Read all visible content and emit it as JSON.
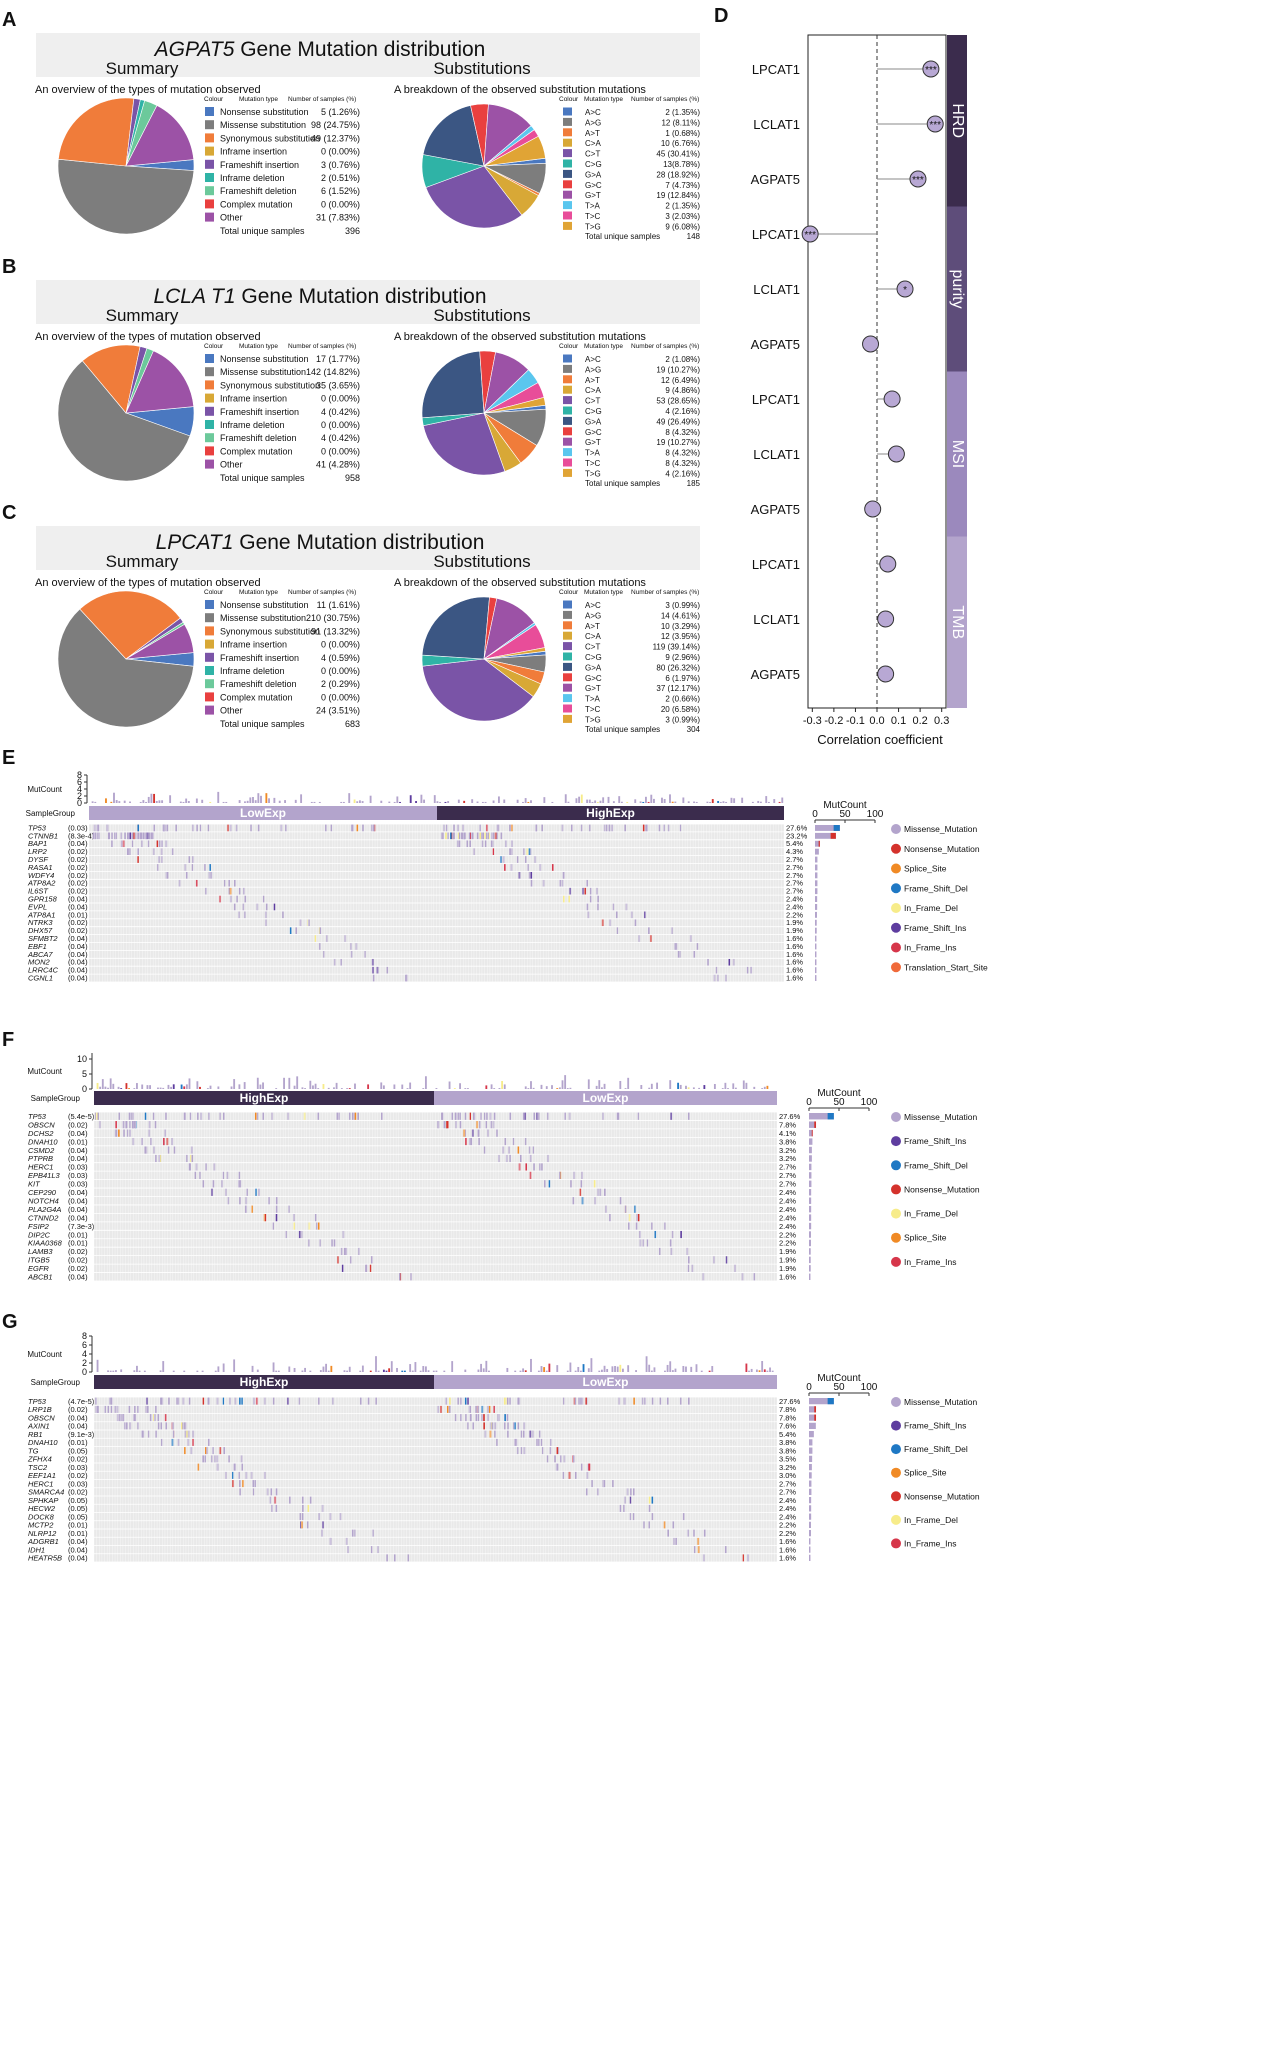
{
  "colors": {
    "header_bg": "#efefef",
    "dark_purple": "#3b2c4d",
    "light_purple": "#b3a4cc",
    "mid_purple": "#5e4d7a",
    "cell_bg": "#e9e9e9",
    "sub": {
      "A>C": "#4a78c0",
      "A>G": "#7d7d7d",
      "A>T": "#f07c3a",
      "C>A": "#d8a836",
      "C>T": "#7a54a7",
      "C>G": "#2fb3a6",
      "G>A": "#3b5683",
      "G>C": "#e9403f",
      "G>T": "#9c52a6",
      "T>A": "#5ac6ee",
      "T>C": "#e84d99",
      "T>G": "#e0a435"
    },
    "type": {
      "Nonsense substitution": "#4a78c0",
      "Missense substitution": "#7d7d7d",
      "Synonymous substitution": "#f07c3a",
      "Inframe insertion": "#d8a836",
      "Frameshift insertion": "#7a54a7",
      "Inframe deletion": "#2fb3a6",
      "Frameshift deletion": "#6cc99b",
      "Complex mutation": "#e9403f",
      "Other": "#9c52a6"
    },
    "onco": {
      "Missense_Mutation": "#b3a4cc",
      "Nonsense_Mutation": "#d4322c",
      "Splice_Site": "#f08a25",
      "Frame_Shift_Del": "#1f78c4",
      "In_Frame_Del": "#f7ec8a",
      "Frame_Shift_Ins": "#5e3d9f",
      "In_Frame_Ins": "#d6364a",
      "Translation_Start_Site": "#f06a3a"
    }
  },
  "panels": [
    {
      "letter": "A",
      "gene": "AGPAT5",
      "title_rest": " Gene Mutation distribution",
      "summary_label": "Summary",
      "subs_label": "Substitutions",
      "summary_caption": "An overview of the types of mutation observed",
      "subs_caption": "A breakdown of the observed substitution mutations",
      "col_headers": [
        "Colour",
        "Mutation type",
        "Number of  samples (%)"
      ],
      "types": [
        {
          "name": "Nonsense substitution",
          "value": 5,
          "text": "5 (1.26%)"
        },
        {
          "name": "Missense substitution",
          "value": 98,
          "text": "98 (24.75%)"
        },
        {
          "name": "Synonymous substitution",
          "value": 49,
          "text": "49 (12.37%)"
        },
        {
          "name": "Inframe insertion",
          "value": 0,
          "text": "0 (0.00%)"
        },
        {
          "name": "Frameshift insertion",
          "value": 3,
          "text": "3 (0.76%)"
        },
        {
          "name": "Inframe deletion",
          "value": 2,
          "text": "2 (0.51%)"
        },
        {
          "name": "Frameshift deletion",
          "value": 6,
          "text": "6 (1.52%)"
        },
        {
          "name": "Complex mutation",
          "value": 0,
          "text": "0 (0.00%)"
        },
        {
          "name": "Other",
          "value": 31,
          "text": "31 (7.83%)"
        }
      ],
      "total_label": "Total unique samples",
      "total": "396",
      "subs": [
        {
          "name": "A>C",
          "value": 2,
          "text": "2 (1.35%)"
        },
        {
          "name": "A>G",
          "value": 12,
          "text": "12 (8.11%)"
        },
        {
          "name": "A>T",
          "value": 1,
          "text": "1 (0.68%)"
        },
        {
          "name": "C>A",
          "value": 10,
          "text": "10 (6.76%)"
        },
        {
          "name": "C>T",
          "value": 45,
          "text": "45 (30.41%)"
        },
        {
          "name": "C>G",
          "value": 13,
          "text": "13(8.78%)"
        },
        {
          "name": "G>A",
          "value": 28,
          "text": "28 (18.92%)"
        },
        {
          "name": "G>C",
          "value": 7,
          "text": "7 (4.73%)"
        },
        {
          "name": "G>T",
          "value": 19,
          "text": "19 (12.84%)"
        },
        {
          "name": "T>A",
          "value": 2,
          "text": "2 (1.35%)"
        },
        {
          "name": "T>C",
          "value": 3,
          "text": "3 (2.03%)"
        },
        {
          "name": "T>G",
          "value": 9,
          "text": "9 (6.08%)"
        }
      ],
      "subs_total": "148"
    },
    {
      "letter": "B",
      "gene": "LCLA T1",
      "title_rest": " Gene Mutation distribution",
      "summary_label": "Summary",
      "subs_label": "Substitutions",
      "summary_caption": "An overview of the types of mutation observed",
      "subs_caption": "A breakdown of the observed substitution mutations",
      "col_headers": [
        "Colour",
        "Mutation type",
        "Number of  samples (%)"
      ],
      "types": [
        {
          "name": "Nonsense substitution",
          "value": 17,
          "text": "17 (1.77%)"
        },
        {
          "name": "Missense substitution",
          "value": 142,
          "text": "142 (14.82%)"
        },
        {
          "name": "Synonymous substitution",
          "value": 35,
          "text": "35 (3.65%)"
        },
        {
          "name": "Inframe insertion",
          "value": 0,
          "text": "0 (0.00%)"
        },
        {
          "name": "Frameshift insertion",
          "value": 4,
          "text": "4 (0.42%)"
        },
        {
          "name": "Inframe deletion",
          "value": 0,
          "text": "0 (0.00%)"
        },
        {
          "name": "Frameshift deletion",
          "value": 4,
          "text": "4 (0.42%)"
        },
        {
          "name": "Complex mutation",
          "value": 0,
          "text": "0 (0.00%)"
        },
        {
          "name": "Other",
          "value": 41,
          "text": "41 (4.28%)"
        }
      ],
      "total_label": "Total unique samples",
      "total": "958",
      "subs": [
        {
          "name": "A>C",
          "value": 2,
          "text": "2 (1.08%)"
        },
        {
          "name": "A>G",
          "value": 19,
          "text": "19 (10.27%)"
        },
        {
          "name": "A>T",
          "value": 12,
          "text": "12 (6.49%)"
        },
        {
          "name": "C>A",
          "value": 9,
          "text": "9 (4.86%)"
        },
        {
          "name": "C>T",
          "value": 53,
          "text": "53 (28.65%)"
        },
        {
          "name": "C>G",
          "value": 4,
          "text": "4 (2.16%)"
        },
        {
          "name": "G>A",
          "value": 49,
          "text": "49 (26.49%)"
        },
        {
          "name": "G>C",
          "value": 8,
          "text": "8 (4.32%)"
        },
        {
          "name": "G>T",
          "value": 19,
          "text": "19 (10.27%)"
        },
        {
          "name": "T>A",
          "value": 8,
          "text": "8 (4.32%)"
        },
        {
          "name": "T>C",
          "value": 8,
          "text": "8 (4.32%)"
        },
        {
          "name": "T>G",
          "value": 4,
          "text": "4 (2.16%)"
        }
      ],
      "subs_total": "185"
    },
    {
      "letter": "C",
      "gene": "LPCAT1",
      "title_rest": " Gene Mutation distribution",
      "summary_label": "Summary",
      "subs_label": "Substitutions",
      "summary_caption": "An overview of the types of mutation observed",
      "subs_caption": "A breakdown of the observed substitution mutations",
      "col_headers": [
        "Colour",
        "Mutation type",
        "Number of  samples (%)"
      ],
      "types": [
        {
          "name": "Nonsense substitution",
          "value": 11,
          "text": "11 (1.61%)"
        },
        {
          "name": "Missense substitution",
          "value": 210,
          "text": "210 (30.75%)"
        },
        {
          "name": "Synonymous substitution",
          "value": 91,
          "text": "91 (13.32%)"
        },
        {
          "name": "Inframe insertion",
          "value": 0,
          "text": "0 (0.00%)"
        },
        {
          "name": "Frameshift insertion",
          "value": 4,
          "text": "4 (0.59%)"
        },
        {
          "name": "Inframe deletion",
          "value": 0,
          "text": "0 (0.00%)"
        },
        {
          "name": "Frameshift deletion",
          "value": 2,
          "text": "2 (0.29%)"
        },
        {
          "name": "Complex mutation",
          "value": 0,
          "text": "0 (0.00%)"
        },
        {
          "name": "Other",
          "value": 24,
          "text": "24 (3.51%)"
        }
      ],
      "total_label": "Total unique samples",
      "total": "683",
      "subs": [
        {
          "name": "A>C",
          "value": 3,
          "text": "3 (0.99%)"
        },
        {
          "name": "A>G",
          "value": 14,
          "text": "14 (4.61%)"
        },
        {
          "name": "A>T",
          "value": 10,
          "text": "10 (3.29%)"
        },
        {
          "name": "C>A",
          "value": 12,
          "text": "12 (3.95%)"
        },
        {
          "name": "C>T",
          "value": 119,
          "text": "119 (39.14%)"
        },
        {
          "name": "C>G",
          "value": 9,
          "text": "9 (2.96%)"
        },
        {
          "name": "G>A",
          "value": 80,
          "text": "80 (26.32%)"
        },
        {
          "name": "G>C",
          "value": 6,
          "text": "6 (1.97%)"
        },
        {
          "name": "G>T",
          "value": 37,
          "text": "37 (12.17%)"
        },
        {
          "name": "T>A",
          "value": 2,
          "text": "2 (0.66%)"
        },
        {
          "name": "T>C",
          "value": 20,
          "text": "20 (6.58%)"
        },
        {
          "name": "T>G",
          "value": 3,
          "text": "3 (0.99%)"
        }
      ],
      "subs_total": "304"
    }
  ],
  "chart_data": {
    "type": "scatter",
    "letter": "D",
    "xlabel": "Correlation coefficient",
    "xlim": [
      -0.32,
      0.32
    ],
    "xticks": [
      "-0.3",
      "-0.2",
      "-0.1",
      "0.0",
      "0.1",
      "0.2",
      "0.3"
    ],
    "xtick_values": [
      -0.3,
      -0.2,
      -0.1,
      0.0,
      0.1,
      0.2,
      0.3
    ],
    "groups": [
      {
        "name": "HRD",
        "points": [
          {
            "gene": "LPCAT1",
            "r": 0.25,
            "sig": "***"
          },
          {
            "gene": "LCLAT1",
            "r": 0.27,
            "sig": "***"
          },
          {
            "gene": "AGPAT5",
            "r": 0.19,
            "sig": "***"
          }
        ]
      },
      {
        "name": "purity",
        "points": [
          {
            "gene": "LPCAT1",
            "r": -0.31,
            "sig": "***"
          },
          {
            "gene": "LCLAT1",
            "r": 0.13,
            "sig": "*"
          },
          {
            "gene": "AGPAT5",
            "r": -0.03,
            "sig": ""
          }
        ]
      },
      {
        "name": "MSI",
        "points": [
          {
            "gene": "LPCAT1",
            "r": 0.07,
            "sig": ""
          },
          {
            "gene": "LCLAT1",
            "r": 0.09,
            "sig": ""
          },
          {
            "gene": "AGPAT5",
            "r": -0.02,
            "sig": ""
          }
        ]
      },
      {
        "name": "TMB",
        "points": [
          {
            "gene": "LPCAT1",
            "r": 0.05,
            "sig": ""
          },
          {
            "gene": "LCLAT1",
            "r": 0.04,
            "sig": ""
          },
          {
            "gene": "AGPAT5",
            "r": 0.04,
            "sig": ""
          }
        ]
      }
    ]
  },
  "oncoplots": [
    {
      "letter": "E",
      "groups": [
        "LowExp",
        "HighExp"
      ],
      "group_dark": [
        false,
        true
      ],
      "mutcount_label": "MutCount",
      "samplegroup_label": "SampleGroup",
      "ymax": 8,
      "yticks": [
        "0",
        "2",
        "4",
        "6",
        "8"
      ],
      "ytick_values": [
        0,
        2,
        4,
        6,
        8
      ],
      "right_ticks": [
        "0",
        "50",
        "100"
      ],
      "genes": [
        {
          "name": "TP53",
          "p": "(0.03)",
          "pct": "27.6%"
        },
        {
          "name": "CTNNB1",
          "p": "(8.3e-4)",
          "pct": "23.2%"
        },
        {
          "name": "BAP1",
          "p": "(0.04)",
          "pct": "5.4%"
        },
        {
          "name": "LRP2",
          "p": "(0.02)",
          "pct": "4.3%"
        },
        {
          "name": "DYSF",
          "p": "(0.02)",
          "pct": "2.7%"
        },
        {
          "name": "RASA1",
          "p": "(0.02)",
          "pct": "2.7%"
        },
        {
          "name": "WDFY4",
          "p": "(0.02)",
          "pct": "2.7%"
        },
        {
          "name": "ATP8A2",
          "p": "(0.02)",
          "pct": "2.7%"
        },
        {
          "name": "IL6ST",
          "p": "(0.02)",
          "pct": "2.7%"
        },
        {
          "name": "GPR158",
          "p": "(0.04)",
          "pct": "2.4%"
        },
        {
          "name": "EVPL",
          "p": "(0.04)",
          "pct": "2.4%"
        },
        {
          "name": "ATP8A1",
          "p": "(0.01)",
          "pct": "2.2%"
        },
        {
          "name": "NTRK3",
          "p": "(0.02)",
          "pct": "1.9%"
        },
        {
          "name": "DHX57",
          "p": "(0.02)",
          "pct": "1.9%"
        },
        {
          "name": "SFMBT2",
          "p": "(0.04)",
          "pct": "1.6%"
        },
        {
          "name": "EBF1",
          "p": "(0.04)",
          "pct": "1.6%"
        },
        {
          "name": "ABCA7",
          "p": "(0.04)",
          "pct": "1.6%"
        },
        {
          "name": "MON2",
          "p": "(0.04)",
          "pct": "1.6%"
        },
        {
          "name": "LRRC4C",
          "p": "(0.04)",
          "pct": "1.6%"
        },
        {
          "name": "CGNL1",
          "p": "(0.04)",
          "pct": "1.6%"
        }
      ],
      "legend": [
        "Missense_Mutation",
        "Nonsense_Mutation",
        "Splice_Site",
        "Frame_Shift_Del",
        "In_Frame_Del",
        "Frame_Shift_Ins",
        "In_Frame_Ins",
        "Translation_Start_Site"
      ]
    },
    {
      "letter": "F",
      "groups": [
        "HighExp",
        "LowExp"
      ],
      "group_dark": [
        true,
        false
      ],
      "mutcount_label": "MutCount",
      "samplegroup_label": "SampleGroup",
      "ymax": 12,
      "yticks": [
        "0",
        "5",
        "10"
      ],
      "ytick_values": [
        0,
        5,
        10
      ],
      "right_ticks": [
        "0",
        "50",
        "100"
      ],
      "genes": [
        {
          "name": "TP53",
          "p": "(5.4e-5)",
          "pct": "27.6%"
        },
        {
          "name": "OBSCN",
          "p": "(0.02)",
          "pct": "7.8%"
        },
        {
          "name": "DCHS2",
          "p": "(0.04)",
          "pct": "4.1%"
        },
        {
          "name": "DNAH10",
          "p": "(0.01)",
          "pct": "3.8%"
        },
        {
          "name": "CSMD2",
          "p": "(0.04)",
          "pct": "3.2%"
        },
        {
          "name": "PTPRB",
          "p": "(0.04)",
          "pct": "3.2%"
        },
        {
          "name": "HERC1",
          "p": "(0.03)",
          "pct": "2.7%"
        },
        {
          "name": "EPB41L3",
          "p": "(0.03)",
          "pct": "2.7%"
        },
        {
          "name": "KIT",
          "p": "(0.03)",
          "pct": "2.7%"
        },
        {
          "name": "CEP290",
          "p": "(0.04)",
          "pct": "2.4%"
        },
        {
          "name": "NOTCH4",
          "p": "(0.04)",
          "pct": "2.4%"
        },
        {
          "name": "PLA2G4A",
          "p": "(0.04)",
          "pct": "2.4%"
        },
        {
          "name": "CTNND2",
          "p": "(0.04)",
          "pct": "2.4%"
        },
        {
          "name": "FSIP2",
          "p": "(7.3e-3)",
          "pct": "2.4%"
        },
        {
          "name": "DIP2C",
          "p": "(0.01)",
          "pct": "2.2%"
        },
        {
          "name": "KIAA0368",
          "p": "(0.01)",
          "pct": "2.2%"
        },
        {
          "name": "LAMB3",
          "p": "(0.02)",
          "pct": "1.9%"
        },
        {
          "name": "ITGB5",
          "p": "(0.02)",
          "pct": "1.9%"
        },
        {
          "name": "EGFR",
          "p": "(0.02)",
          "pct": "1.9%"
        },
        {
          "name": "ABCB1",
          "p": "(0.04)",
          "pct": "1.6%"
        }
      ],
      "legend": [
        "Missense_Mutation",
        "Frame_Shift_Ins",
        "Frame_Shift_Del",
        "Nonsense_Mutation",
        "In_Frame_Del",
        "Splice_Site",
        "In_Frame_Ins"
      ]
    },
    {
      "letter": "G",
      "groups": [
        "HighExp",
        "LowExp"
      ],
      "group_dark": [
        true,
        false
      ],
      "mutcount_label": "MutCount",
      "samplegroup_label": "SampleGroup",
      "ymax": 8,
      "yticks": [
        "0",
        "2",
        "4",
        "6",
        "8"
      ],
      "ytick_values": [
        0,
        2,
        4,
        6,
        8
      ],
      "right_ticks": [
        "0",
        "50",
        "100"
      ],
      "genes": [
        {
          "name": "TP53",
          "p": "(4.7e-5)",
          "pct": "27.6%"
        },
        {
          "name": "LRP1B",
          "p": "(0.02)",
          "pct": "7.8%"
        },
        {
          "name": "OBSCN",
          "p": "(0.04)",
          "pct": "7.8%"
        },
        {
          "name": "AXIN1",
          "p": "(0.04)",
          "pct": "7.6%"
        },
        {
          "name": "RB1",
          "p": "(9.1e-3)",
          "pct": "5.4%"
        },
        {
          "name": "DNAH10",
          "p": "(0.01)",
          "pct": "3.8%"
        },
        {
          "name": "TG",
          "p": "(0.05)",
          "pct": "3.8%"
        },
        {
          "name": "ZFHX4",
          "p": "(0.02)",
          "pct": "3.5%"
        },
        {
          "name": "TSC2",
          "p": "(0.03)",
          "pct": "3.2%"
        },
        {
          "name": "EEF1A1",
          "p": "(0.02)",
          "pct": "3.0%"
        },
        {
          "name": "HERC1",
          "p": "(0.03)",
          "pct": "2.7%"
        },
        {
          "name": "SMARCA4",
          "p": "(0.02)",
          "pct": "2.7%"
        },
        {
          "name": "SPHKAP",
          "p": "(0.05)",
          "pct": "2.4%"
        },
        {
          "name": "HECW2",
          "p": "(0.05)",
          "pct": "2.4%"
        },
        {
          "name": "DOCK8",
          "p": "(0.05)",
          "pct": "2.4%"
        },
        {
          "name": "MCTP2",
          "p": "(0.01)",
          "pct": "2.2%"
        },
        {
          "name": "NLRP12",
          "p": "(0.01)",
          "pct": "2.2%"
        },
        {
          "name": "ADGRB1",
          "p": "(0.04)",
          "pct": "1.6%"
        },
        {
          "name": "IDH1",
          "p": "(0.04)",
          "pct": "1.6%"
        },
        {
          "name": "HEATR5B",
          "p": "(0.04)",
          "pct": "1.6%"
        }
      ],
      "legend": [
        "Missense_Mutation",
        "Frame_Shift_Ins",
        "Frame_Shift_Del",
        "Splice_Site",
        "Nonsense_Mutation",
        "In_Frame_Del",
        "In_Frame_Ins"
      ]
    }
  ]
}
